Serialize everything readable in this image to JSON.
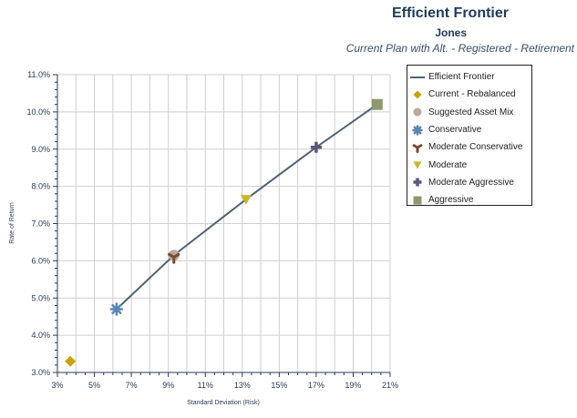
{
  "header": {
    "title": "Efficient Frontier",
    "subtitle": "Jones",
    "plan": "Current Plan with Alt. - Registered - Retirement"
  },
  "colors": {
    "frontier": "#4e6478",
    "grid": "#cfcfcf",
    "axis": "#2a3b55"
  },
  "chart_data": {
    "type": "scatter",
    "title": "Efficient Frontier",
    "xlabel": "Standard Deviation (Risk)",
    "ylabel": "Rate of Return",
    "xlim": [
      3,
      21
    ],
    "ylim": [
      3,
      11
    ],
    "x_ticks": [
      "3%",
      "5%",
      "7%",
      "9%",
      "11%",
      "13%",
      "15%",
      "17%",
      "19%",
      "21%"
    ],
    "y_ticks": [
      "3.0%",
      "4.0%",
      "5.0%",
      "6.0%",
      "7.0%",
      "8.0%",
      "9.0%",
      "10.0%",
      "11.0%"
    ],
    "grid": true,
    "legend_position": "right",
    "line": {
      "name": "Efficient Frontier",
      "color": "#4e6478",
      "points": [
        [
          6.2,
          4.7
        ],
        [
          9.3,
          6.15
        ],
        [
          13.2,
          7.65
        ],
        [
          17.0,
          9.05
        ],
        [
          20.3,
          10.2
        ]
      ]
    },
    "series": [
      {
        "name": "Current - Rebalanced",
        "x": 3.7,
        "y": 3.3,
        "marker": "diamond",
        "color": "#c8a400"
      },
      {
        "name": "Suggested Asset Mix",
        "x": 9.3,
        "y": 6.15,
        "marker": "circle",
        "color": "#b7a99c"
      },
      {
        "name": "Conservative",
        "x": 6.2,
        "y": 4.7,
        "marker": "asterisk",
        "color": "#5a86b5"
      },
      {
        "name": "Moderate Conservative",
        "x": 9.3,
        "y": 6.1,
        "marker": "tripod",
        "color": "#7b4a35"
      },
      {
        "name": "Moderate",
        "x": 13.2,
        "y": 7.65,
        "marker": "triangle-down",
        "color": "#c9b828"
      },
      {
        "name": "Moderate Aggressive",
        "x": 17.0,
        "y": 9.05,
        "marker": "plus",
        "color": "#5c5678"
      },
      {
        "name": "Aggressive",
        "x": 20.3,
        "y": 10.2,
        "marker": "square",
        "color": "#8c9a6e"
      }
    ]
  }
}
